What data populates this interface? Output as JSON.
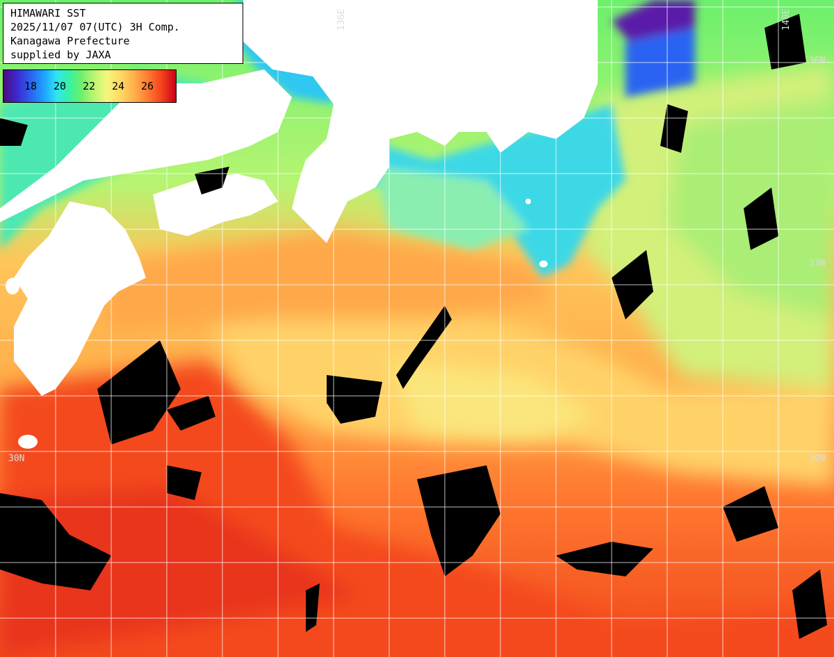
{
  "title_block": {
    "line1": "HIMAWARI SST",
    "line2": "2025/11/07 07(UTC) 3H Comp.",
    "line3": "Kanagawa Prefecture",
    "line4": "supplied by JAXA"
  },
  "colorbar": {
    "labels": [
      "18",
      "20",
      "22",
      "24",
      "26"
    ]
  },
  "grid_labels": {
    "lon_136": "136E",
    "lon_140": "140E",
    "lat_36": "36N",
    "lat_33": "33N",
    "lat_30_left": "30N",
    "lat_30_right": "30N"
  },
  "colors": {
    "land": "#ffffff",
    "cloud_missing": "#000000",
    "warm": "#f4401c",
    "mid": "#ffae4a",
    "cool": "#f6f67c",
    "cold": "#36f2a4",
    "coldest": "#1fa6ff",
    "grid": "#ffffff"
  }
}
